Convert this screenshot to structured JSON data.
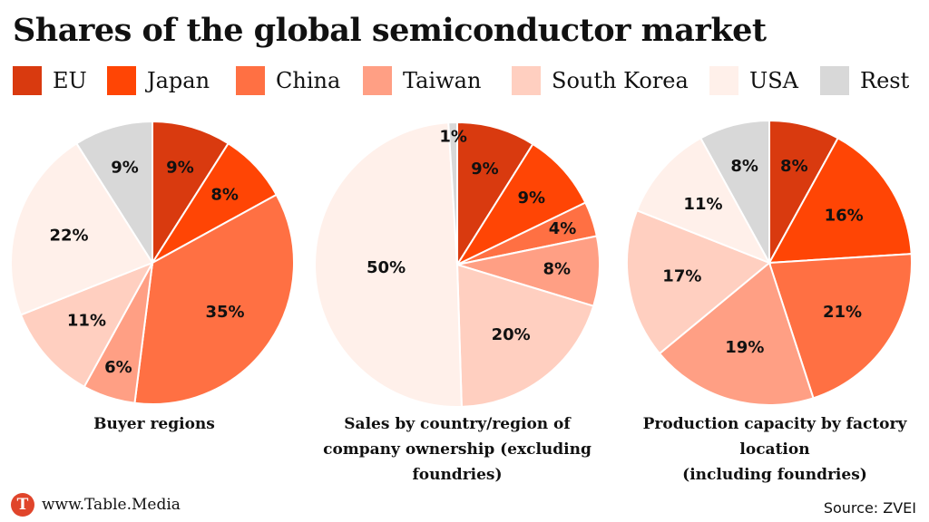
{
  "title": "Shares of the global semiconductor market",
  "colors": {
    "EU": "#d93a0f",
    "Japan": "#ff4505",
    "China": "#ff7043",
    "Taiwan": "#ff9f84",
    "South Korea": "#ffcfc0",
    "USA": "#fff0ea",
    "Rest": "#d8d8d8"
  },
  "legend": [
    "EU",
    "Japan",
    "China",
    "Taiwan",
    "South Korea",
    "USA",
    "Rest"
  ],
  "chart_data": [
    {
      "type": "pie",
      "title": "Buyer regions",
      "categories": [
        "EU",
        "Japan",
        "China",
        "Taiwan",
        "South Korea",
        "USA",
        "Rest"
      ],
      "values": [
        9,
        8,
        35,
        6,
        11,
        22,
        9
      ],
      "labels": [
        "9%",
        "8%",
        "35%",
        "6%",
        "11%",
        "22%",
        "9%"
      ]
    },
    {
      "type": "pie",
      "title": "Sales by country/region of company ownership (excluding foundries)",
      "categories": [
        "EU",
        "Japan",
        "China",
        "Taiwan",
        "South Korea",
        "USA",
        "Rest"
      ],
      "values": [
        9,
        9,
        4,
        8,
        20,
        50,
        1
      ],
      "labels": [
        "9%",
        "9%",
        "4%",
        "8%",
        "20%",
        "50%",
        "1%"
      ]
    },
    {
      "type": "pie",
      "title": "Production capacity by factory location (including foundries)",
      "categories": [
        "EU",
        "Japan",
        "China",
        "Taiwan",
        "South Korea",
        "USA",
        "Rest"
      ],
      "values": [
        8,
        16,
        21,
        19,
        17,
        11,
        8
      ],
      "labels": [
        "8%",
        "16%",
        "21%",
        "19%",
        "17%",
        "11%",
        "8%"
      ]
    }
  ],
  "captions": {
    "chart1": "Buyer regions",
    "chart2_line1": "Sales by country/region of",
    "chart2_line2": "company ownership (excluding",
    "chart2_line3": "foundries)",
    "chart3_line1": "Production capacity by factory",
    "chart3_line2": "location",
    "chart3_line3": "(including foundries)"
  },
  "footer": {
    "logo_letter": "T",
    "site": "www.Table.Media",
    "source": "Source: ZVEI"
  }
}
